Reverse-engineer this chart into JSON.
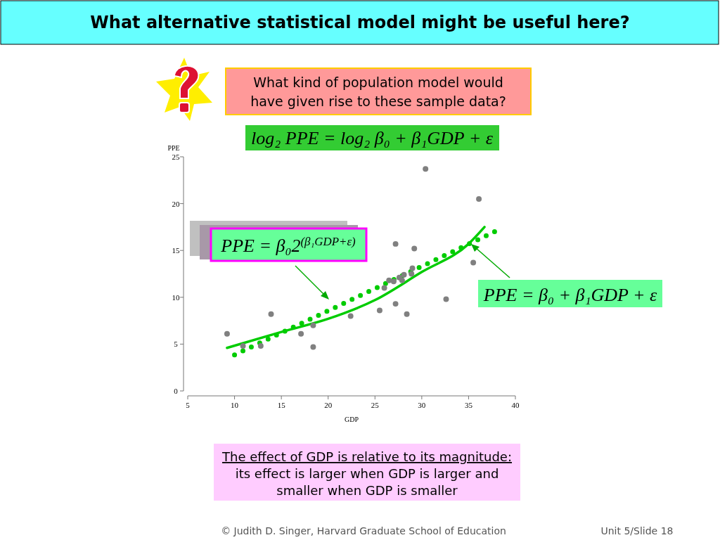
{
  "chart_data": {
    "type": "scatter",
    "title": "What alternative statistical model might be useful here?",
    "xlabel": "GDP",
    "ylabel": "PPE",
    "xlim": [
      5,
      40
    ],
    "ylim": [
      0,
      25
    ],
    "xticks": [
      5,
      10,
      15,
      20,
      25,
      30,
      35,
      40
    ],
    "yticks": [
      0,
      5,
      10,
      15,
      20,
      25
    ],
    "annotations": [
      "What kind of population model would have given rise to these sample data?",
      "log₂ PPE = log₂ β₀ + β₁GDP + ε",
      "PPE = β₀2$^{(β₁GDP+ε)}$",
      "PPE = β₀ + β₁GDP + ε",
      "The effect of GDP is relative to its magnitude:",
      "its effect is larger when GDP is larger and smaller when GDP is smaller",
      "© Judith D. Singer, Harvard Graduate School of Education",
      "Unit 5/Slide 18"
    ],
    "series": [
      {
        "color": "#808080",
        "marker": "circle",
        "x": [
          9.2,
          10.9,
          12.8,
          13.9,
          17.1,
          18.4,
          18.4,
          22.4,
          25.5,
          26.0,
          26.5,
          27.0,
          27.2,
          27.2,
          27.6,
          27.9,
          28.1,
          28.4,
          28.9,
          29.0,
          29.2,
          30.4,
          32.6,
          35.5,
          36.1
        ],
        "values": [
          6.1,
          4.8,
          4.8,
          8.2,
          6.1,
          7.0,
          4.7,
          8.0,
          8.6,
          11.0,
          11.8,
          11.7,
          9.3,
          15.7,
          12.1,
          11.8,
          12.4,
          8.2,
          12.5,
          13.1,
          15.2,
          23.7,
          9.8,
          13.7,
          20.5
        ]
      },
      {
        "type": "line",
        "color": "#00cc00",
        "line_style": "solid",
        "x": [
          9.2,
          15,
          20,
          25,
          30,
          35,
          36.7
        ],
        "values": [
          4.6,
          6.3,
          7.7,
          9.7,
          12.7,
          15.7,
          17.5
        ]
      },
      {
        "type": "line",
        "color": "#00cc00",
        "line_style": "dotted",
        "x": [
          10,
          20.5,
          30.2,
          38.2
        ],
        "values": [
          3.85,
          8.8,
          13.4,
          17.2
        ]
      }
    ]
  }
}
